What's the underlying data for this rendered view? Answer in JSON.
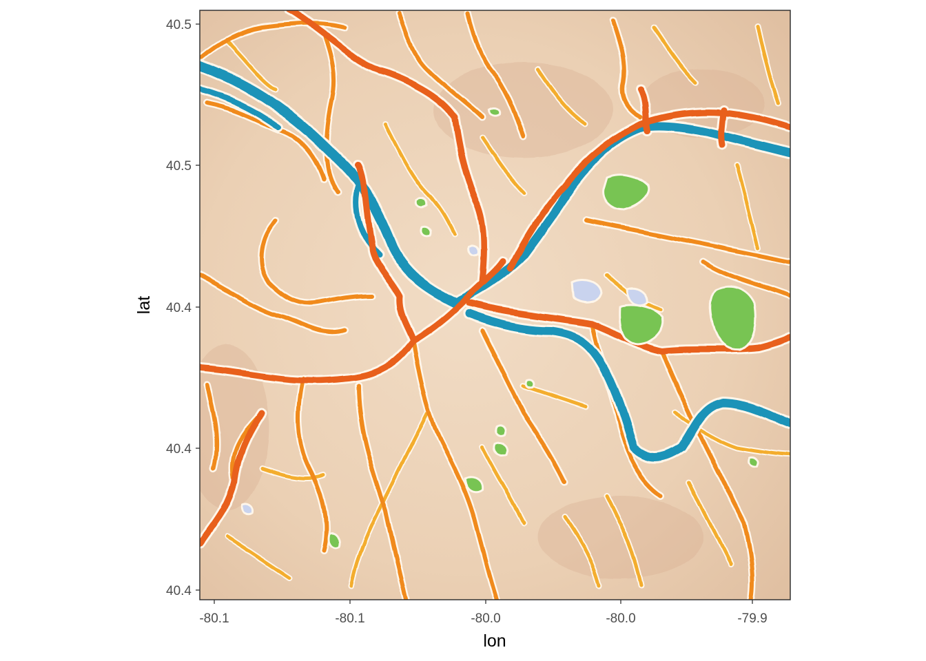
{
  "figure": {
    "x_axis": {
      "title": "lon",
      "tick_labels": [
        "-80.1",
        "-80.1",
        "-80.0",
        "-80.0",
        "-79.9"
      ]
    },
    "y_axis": {
      "title": "lat",
      "tick_labels": [
        "40.5",
        "40.5",
        "40.4",
        "40.4",
        "40.4"
      ]
    }
  },
  "map": {
    "style": "watercolor",
    "colors": {
      "land": "#ecd3b8",
      "land_dark": "#d8b090",
      "major_road": "#e8611a",
      "road": "#f08a1c",
      "minor_road": "#f3ad2e",
      "river": "#1f93b8",
      "park": "#78c452",
      "water_pond": "#c9d3ee"
    }
  }
}
